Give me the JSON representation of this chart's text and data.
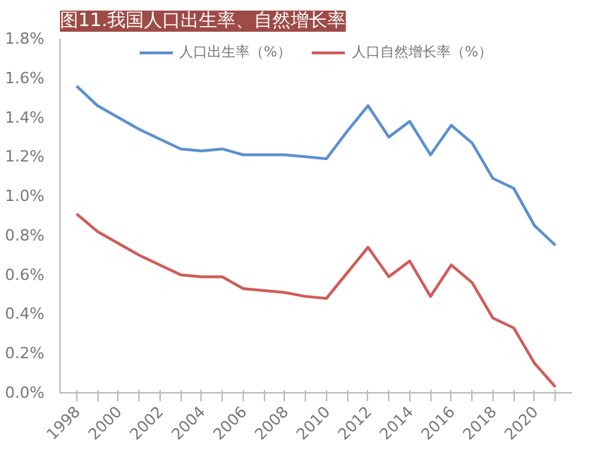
{
  "chart_data": {
    "type": "line",
    "title": "图11.我国人口出生率、自然增长率",
    "categories": [
      "1998",
      null,
      "2000",
      null,
      "2002",
      null,
      "2004",
      null,
      "2006",
      null,
      "2008",
      null,
      "2010",
      null,
      "2012",
      null,
      "2014",
      null,
      "2016",
      null,
      "2018",
      null,
      "2020",
      null
    ],
    "series": [
      {
        "name": "人口出生率（%）",
        "color": "#5b8fcf",
        "values": [
          1.56,
          1.46,
          1.4,
          1.34,
          1.29,
          1.24,
          1.23,
          1.24,
          1.21,
          1.21,
          1.21,
          1.2,
          1.19,
          1.33,
          1.46,
          1.3,
          1.38,
          1.21,
          1.36,
          1.27,
          1.09,
          1.04,
          0.85,
          0.75
        ]
      },
      {
        "name": "人口自然增长率（%）",
        "color": "#cf5b57",
        "values": [
          0.91,
          0.82,
          0.76,
          0.7,
          0.65,
          0.6,
          0.59,
          0.59,
          0.53,
          0.52,
          0.51,
          0.49,
          0.48,
          0.61,
          0.74,
          0.59,
          0.67,
          0.49,
          0.65,
          0.56,
          0.38,
          0.33,
          0.15,
          0.03
        ]
      }
    ],
    "ylim": [
      0,
      1.8
    ],
    "yticks": [
      {
        "value": 0,
        "label": "0.0%"
      },
      {
        "value": 0.2,
        "label": "0.2%"
      },
      {
        "value": 0.4,
        "label": "0.4%"
      },
      {
        "value": 0.6,
        "label": "0.6%"
      },
      {
        "value": 0.8,
        "label": "0.8%"
      },
      {
        "value": 1.0,
        "label": "1.0%"
      },
      {
        "value": 1.2,
        "label": "1.2%"
      },
      {
        "value": 1.4,
        "label": "1.4%"
      },
      {
        "value": 1.6,
        "label": "1.6%"
      },
      {
        "value": 1.8,
        "label": "1.8%"
      }
    ],
    "grid": false,
    "legend": "top",
    "marker": "none",
    "line_style": "solid"
  }
}
